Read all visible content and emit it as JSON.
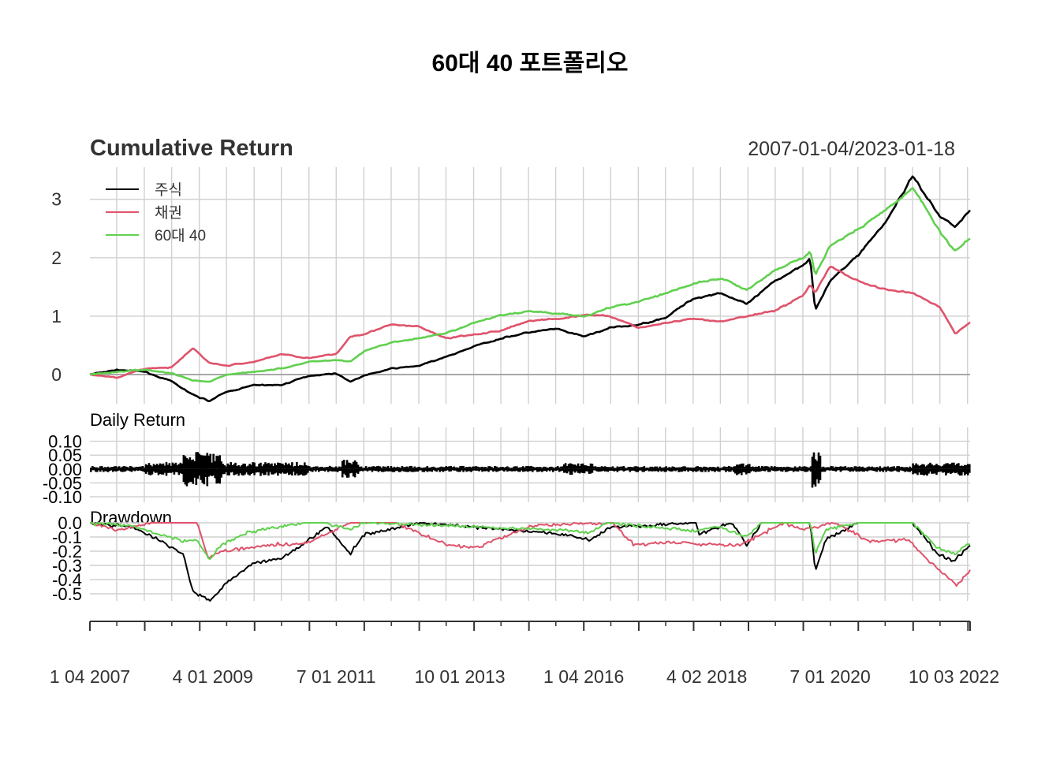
{
  "title": "60대 40 포트폴리오",
  "date_range": "2007-01-04/2023-01-18",
  "chart_data": [
    {
      "panel": "cumulative",
      "type": "line",
      "title": "Cumulative Return",
      "ylim": [
        -0.5,
        3.55
      ],
      "yticks": [
        0,
        1,
        2,
        3
      ],
      "grid": true,
      "legend": "top-left",
      "x": [
        "2007-01-04",
        "2007-07-02",
        "2008-01-02",
        "2008-07-01",
        "2008-11-20",
        "2009-03-09",
        "2009-07-01",
        "2010-01-04",
        "2010-07-01",
        "2011-01-03",
        "2011-07-01",
        "2011-10-03",
        "2012-01-03",
        "2012-07-02",
        "2013-01-02",
        "2013-07-01",
        "2014-01-02",
        "2014-07-01",
        "2015-01-02",
        "2015-07-01",
        "2016-01-04",
        "2016-07-01",
        "2017-01-03",
        "2017-07-03",
        "2018-01-02",
        "2018-07-02",
        "2018-12-24",
        "2019-07-01",
        "2020-01-02",
        "2020-02-19",
        "2020-03-23",
        "2020-07-01",
        "2021-01-04",
        "2021-07-01",
        "2022-01-03",
        "2022-07-01",
        "2022-10-12",
        "2023-01-18"
      ],
      "series": [
        {
          "name": "주식",
          "color": "#000000",
          "values": [
            0.0,
            0.08,
            0.05,
            -0.12,
            -0.35,
            -0.45,
            -0.3,
            -0.18,
            -0.18,
            -0.02,
            0.02,
            -0.12,
            -0.02,
            0.1,
            0.15,
            0.3,
            0.48,
            0.62,
            0.72,
            0.78,
            0.65,
            0.8,
            0.85,
            0.98,
            1.3,
            1.4,
            1.2,
            1.6,
            1.88,
            2.0,
            1.1,
            1.6,
            2.05,
            2.6,
            3.4,
            2.7,
            2.55,
            2.8
          ]
        },
        {
          "name": "채권",
          "color": "#DF536B",
          "values": [
            0.0,
            -0.05,
            0.1,
            0.12,
            0.45,
            0.2,
            0.15,
            0.22,
            0.35,
            0.28,
            0.35,
            0.65,
            0.7,
            0.85,
            0.82,
            0.62,
            0.68,
            0.75,
            0.92,
            0.95,
            1.02,
            1.0,
            0.8,
            0.88,
            0.95,
            0.9,
            1.0,
            1.1,
            1.35,
            1.55,
            1.4,
            1.85,
            1.6,
            1.45,
            1.4,
            1.15,
            0.7,
            0.9
          ]
        },
        {
          "name": "60대 40",
          "color": "#61D04F",
          "values": [
            0.0,
            0.05,
            0.08,
            0.02,
            -0.1,
            -0.12,
            0.0,
            0.05,
            0.1,
            0.22,
            0.25,
            0.22,
            0.4,
            0.55,
            0.62,
            0.7,
            0.88,
            1.02,
            1.08,
            1.05,
            1.0,
            1.15,
            1.25,
            1.4,
            1.55,
            1.65,
            1.45,
            1.78,
            2.0,
            2.1,
            1.7,
            2.2,
            2.5,
            2.8,
            3.2,
            2.45,
            2.1,
            2.35
          ]
        }
      ]
    },
    {
      "panel": "daily",
      "type": "bar",
      "title": "Daily Return",
      "ylim": [
        -0.12,
        0.15
      ],
      "yticks": [
        -0.1,
        -0.05,
        0.0,
        0.05,
        0.1
      ],
      "ytick_labels": [
        "-0.10",
        "-0.05",
        "0.00",
        "0.05",
        "0.10"
      ],
      "grid": true
    },
    {
      "panel": "drawdown",
      "type": "line",
      "title": "Drawdown",
      "ylim": [
        -0.55,
        0.0
      ],
      "yticks": [
        0.0,
        -0.1,
        -0.2,
        -0.3,
        -0.4,
        -0.5
      ],
      "ytick_labels": [
        "0.0",
        "-0.1",
        "-0.2",
        "-0.3",
        "-0.4",
        "-0.5"
      ],
      "grid": true,
      "series": [
        {
          "name": "주식",
          "color": "#000000",
          "x": [
            "2007-01-04",
            "2007-10-09",
            "2008-06-01",
            "2008-09-15",
            "2008-11-20",
            "2009-03-09",
            "2009-07-01",
            "2010-01-04",
            "2010-07-01",
            "2011-01-03",
            "2011-05-02",
            "2011-10-03",
            "2012-01-03",
            "2012-07-01",
            "2013-01-02",
            "2015-08-24",
            "2016-02-11",
            "2016-07-01",
            "2018-01-26",
            "2018-02-08",
            "2018-09-20",
            "2018-12-24",
            "2019-04-01",
            "2020-02-19",
            "2020-03-23",
            "2020-06-01",
            "2020-09-01",
            "2021-01-04",
            "2022-01-03",
            "2022-06-16",
            "2022-09-30",
            "2023-01-18"
          ],
          "values": [
            0,
            -0.03,
            -0.15,
            -0.22,
            -0.48,
            -0.55,
            -0.42,
            -0.28,
            -0.25,
            -0.12,
            -0.02,
            -0.22,
            -0.08,
            -0.05,
            0,
            -0.08,
            -0.12,
            -0.03,
            0,
            -0.08,
            0,
            -0.16,
            0,
            0,
            -0.34,
            -0.12,
            -0.07,
            0,
            0,
            -0.22,
            -0.27,
            -0.16
          ]
        },
        {
          "name": "채권",
          "color": "#DF536B",
          "x": [
            "2007-01-04",
            "2007-07-02",
            "2008-03-01",
            "2008-12-18",
            "2009-03-01",
            "2009-06-01",
            "2010-06-01",
            "2010-12-01",
            "2011-10-03",
            "2012-07-24",
            "2013-06-24",
            "2014-01-02",
            "2015-01-30",
            "2016-07-08",
            "2016-12-01",
            "2017-09-01",
            "2018-11-01",
            "2019-08-30",
            "2020-01-02",
            "2020-08-04",
            "2021-03-19",
            "2021-12-01",
            "2022-03-01",
            "2022-06-14",
            "2022-10-24",
            "2023-01-18"
          ],
          "values": [
            0,
            -0.05,
            0,
            0,
            -0.25,
            -0.2,
            -0.15,
            -0.15,
            0,
            0,
            -0.15,
            -0.18,
            -0.02,
            0,
            -0.15,
            -0.14,
            -0.16,
            0,
            -0.05,
            0,
            -0.13,
            -0.12,
            -0.22,
            -0.32,
            -0.44,
            -0.34
          ]
        },
        {
          "name": "60대 40",
          "color": "#61D04F",
          "x": [
            "2007-01-04",
            "2007-10-09",
            "2008-06-01",
            "2008-09-15",
            "2008-12-18",
            "2009-03-09",
            "2009-06-01",
            "2009-12-01",
            "2010-06-01",
            "2010-12-01",
            "2011-05-02",
            "2011-10-03",
            "2012-01-03",
            "2015-08-24",
            "2016-02-11",
            "2016-06-01",
            "2018-02-08",
            "2018-06-01",
            "2018-12-24",
            "2019-04-01",
            "2020-02-19",
            "2020-03-23",
            "2020-06-01",
            "2021-01-04",
            "2022-01-03",
            "2022-06-16",
            "2022-10-12",
            "2023-01-18"
          ],
          "values": [
            0,
            -0.02,
            -0.1,
            -0.13,
            -0.12,
            -0.26,
            -0.15,
            -0.06,
            -0.03,
            0,
            0,
            -0.05,
            0,
            -0.05,
            -0.07,
            0,
            -0.06,
            -0.02,
            -0.1,
            0,
            0,
            -0.22,
            -0.05,
            0,
            0,
            -0.18,
            -0.22,
            -0.14
          ]
        }
      ]
    }
  ],
  "x_tick_labels": [
    "1 04 2007",
    "4 01 2009",
    "7 01 2011",
    "10 01 2013",
    "1 04 2016",
    "4 02 2018",
    "7 01 2020",
    "10 03 2022"
  ],
  "x_tick_dates": [
    "2007-01-04",
    "2009-04-01",
    "2011-07-01",
    "2013-10-01",
    "2016-01-04",
    "2018-04-02",
    "2020-07-01",
    "2022-10-03"
  ]
}
